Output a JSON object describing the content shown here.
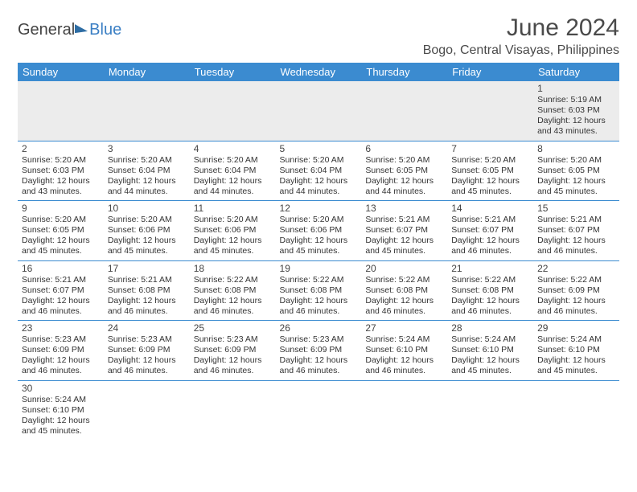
{
  "brand": {
    "part1": "General",
    "part2": "Blue"
  },
  "title": "June 2024",
  "location": "Bogo, Central Visayas, Philippines",
  "colors": {
    "header_bg": "#3b8bd0",
    "header_text": "#ffffff",
    "rule": "#3b8bd0",
    "alt_row_bg": "#ececec",
    "body_text": "#333333",
    "title_text": "#4a4a4a"
  },
  "typography": {
    "title_fontsize": 30,
    "location_fontsize": 16,
    "weekday_fontsize": 13,
    "daynum_fontsize": 12,
    "body_fontsize": 10.5
  },
  "calendar": {
    "type": "table",
    "columns": [
      "Sunday",
      "Monday",
      "Tuesday",
      "Wednesday",
      "Thursday",
      "Friday",
      "Saturday"
    ],
    "weeks": [
      [
        null,
        null,
        null,
        null,
        null,
        null,
        {
          "d": "1",
          "sr": "Sunrise: 5:19 AM",
          "ss": "Sunset: 6:03 PM",
          "dl1": "Daylight: 12 hours",
          "dl2": "and 43 minutes."
        }
      ],
      [
        {
          "d": "2",
          "sr": "Sunrise: 5:20 AM",
          "ss": "Sunset: 6:03 PM",
          "dl1": "Daylight: 12 hours",
          "dl2": "and 43 minutes."
        },
        {
          "d": "3",
          "sr": "Sunrise: 5:20 AM",
          "ss": "Sunset: 6:04 PM",
          "dl1": "Daylight: 12 hours",
          "dl2": "and 44 minutes."
        },
        {
          "d": "4",
          "sr": "Sunrise: 5:20 AM",
          "ss": "Sunset: 6:04 PM",
          "dl1": "Daylight: 12 hours",
          "dl2": "and 44 minutes."
        },
        {
          "d": "5",
          "sr": "Sunrise: 5:20 AM",
          "ss": "Sunset: 6:04 PM",
          "dl1": "Daylight: 12 hours",
          "dl2": "and 44 minutes."
        },
        {
          "d": "6",
          "sr": "Sunrise: 5:20 AM",
          "ss": "Sunset: 6:05 PM",
          "dl1": "Daylight: 12 hours",
          "dl2": "and 44 minutes."
        },
        {
          "d": "7",
          "sr": "Sunrise: 5:20 AM",
          "ss": "Sunset: 6:05 PM",
          "dl1": "Daylight: 12 hours",
          "dl2": "and 45 minutes."
        },
        {
          "d": "8",
          "sr": "Sunrise: 5:20 AM",
          "ss": "Sunset: 6:05 PM",
          "dl1": "Daylight: 12 hours",
          "dl2": "and 45 minutes."
        }
      ],
      [
        {
          "d": "9",
          "sr": "Sunrise: 5:20 AM",
          "ss": "Sunset: 6:05 PM",
          "dl1": "Daylight: 12 hours",
          "dl2": "and 45 minutes."
        },
        {
          "d": "10",
          "sr": "Sunrise: 5:20 AM",
          "ss": "Sunset: 6:06 PM",
          "dl1": "Daylight: 12 hours",
          "dl2": "and 45 minutes."
        },
        {
          "d": "11",
          "sr": "Sunrise: 5:20 AM",
          "ss": "Sunset: 6:06 PM",
          "dl1": "Daylight: 12 hours",
          "dl2": "and 45 minutes."
        },
        {
          "d": "12",
          "sr": "Sunrise: 5:20 AM",
          "ss": "Sunset: 6:06 PM",
          "dl1": "Daylight: 12 hours",
          "dl2": "and 45 minutes."
        },
        {
          "d": "13",
          "sr": "Sunrise: 5:21 AM",
          "ss": "Sunset: 6:07 PM",
          "dl1": "Daylight: 12 hours",
          "dl2": "and 45 minutes."
        },
        {
          "d": "14",
          "sr": "Sunrise: 5:21 AM",
          "ss": "Sunset: 6:07 PM",
          "dl1": "Daylight: 12 hours",
          "dl2": "and 46 minutes."
        },
        {
          "d": "15",
          "sr": "Sunrise: 5:21 AM",
          "ss": "Sunset: 6:07 PM",
          "dl1": "Daylight: 12 hours",
          "dl2": "and 46 minutes."
        }
      ],
      [
        {
          "d": "16",
          "sr": "Sunrise: 5:21 AM",
          "ss": "Sunset: 6:07 PM",
          "dl1": "Daylight: 12 hours",
          "dl2": "and 46 minutes."
        },
        {
          "d": "17",
          "sr": "Sunrise: 5:21 AM",
          "ss": "Sunset: 6:08 PM",
          "dl1": "Daylight: 12 hours",
          "dl2": "and 46 minutes."
        },
        {
          "d": "18",
          "sr": "Sunrise: 5:22 AM",
          "ss": "Sunset: 6:08 PM",
          "dl1": "Daylight: 12 hours",
          "dl2": "and 46 minutes."
        },
        {
          "d": "19",
          "sr": "Sunrise: 5:22 AM",
          "ss": "Sunset: 6:08 PM",
          "dl1": "Daylight: 12 hours",
          "dl2": "and 46 minutes."
        },
        {
          "d": "20",
          "sr": "Sunrise: 5:22 AM",
          "ss": "Sunset: 6:08 PM",
          "dl1": "Daylight: 12 hours",
          "dl2": "and 46 minutes."
        },
        {
          "d": "21",
          "sr": "Sunrise: 5:22 AM",
          "ss": "Sunset: 6:08 PM",
          "dl1": "Daylight: 12 hours",
          "dl2": "and 46 minutes."
        },
        {
          "d": "22",
          "sr": "Sunrise: 5:22 AM",
          "ss": "Sunset: 6:09 PM",
          "dl1": "Daylight: 12 hours",
          "dl2": "and 46 minutes."
        }
      ],
      [
        {
          "d": "23",
          "sr": "Sunrise: 5:23 AM",
          "ss": "Sunset: 6:09 PM",
          "dl1": "Daylight: 12 hours",
          "dl2": "and 46 minutes."
        },
        {
          "d": "24",
          "sr": "Sunrise: 5:23 AM",
          "ss": "Sunset: 6:09 PM",
          "dl1": "Daylight: 12 hours",
          "dl2": "and 46 minutes."
        },
        {
          "d": "25",
          "sr": "Sunrise: 5:23 AM",
          "ss": "Sunset: 6:09 PM",
          "dl1": "Daylight: 12 hours",
          "dl2": "and 46 minutes."
        },
        {
          "d": "26",
          "sr": "Sunrise: 5:23 AM",
          "ss": "Sunset: 6:09 PM",
          "dl1": "Daylight: 12 hours",
          "dl2": "and 46 minutes."
        },
        {
          "d": "27",
          "sr": "Sunrise: 5:24 AM",
          "ss": "Sunset: 6:10 PM",
          "dl1": "Daylight: 12 hours",
          "dl2": "and 46 minutes."
        },
        {
          "d": "28",
          "sr": "Sunrise: 5:24 AM",
          "ss": "Sunset: 6:10 PM",
          "dl1": "Daylight: 12 hours",
          "dl2": "and 45 minutes."
        },
        {
          "d": "29",
          "sr": "Sunrise: 5:24 AM",
          "ss": "Sunset: 6:10 PM",
          "dl1": "Daylight: 12 hours",
          "dl2": "and 45 minutes."
        }
      ],
      [
        {
          "d": "30",
          "sr": "Sunrise: 5:24 AM",
          "ss": "Sunset: 6:10 PM",
          "dl1": "Daylight: 12 hours",
          "dl2": "and 45 minutes."
        },
        null,
        null,
        null,
        null,
        null,
        null
      ]
    ]
  }
}
